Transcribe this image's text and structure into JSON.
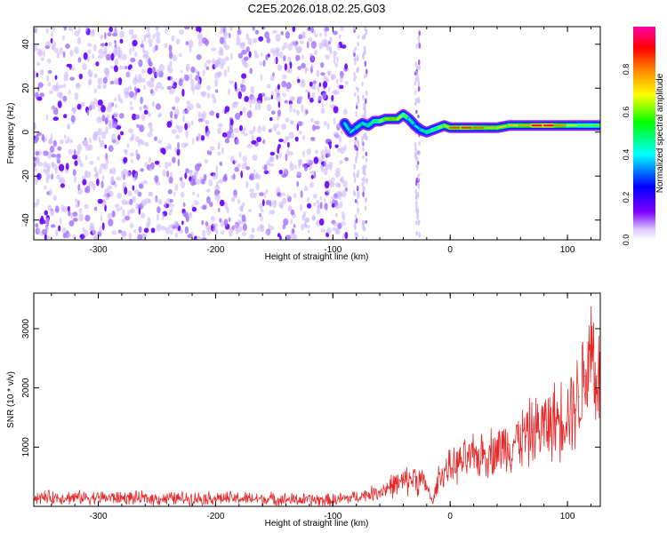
{
  "title": "C2E5.2026.018.02.25.G03",
  "chart_data": [
    {
      "type": "heatmap",
      "xlabel": "Height of straight line (km)",
      "ylabel": "Frequency (Hz)",
      "xlim": [
        -355,
        128
      ],
      "ylim": [
        -49,
        48
      ],
      "xticks": [
        -300,
        -200,
        -100,
        0,
        100
      ],
      "yticks": [
        -40,
        -20,
        0,
        20,
        40
      ],
      "grid": false,
      "colorbar": {
        "label": "Normalized spectral amplitude",
        "range": [
          0,
          1
        ],
        "ticks": [
          0.0,
          0.2,
          0.4,
          0.6,
          0.8
        ],
        "colors": [
          "#ffffff",
          "#d8c8ff",
          "#8000ff",
          "#0000ff",
          "#00ffff",
          "#00ff00",
          "#ffff00",
          "#ff8000",
          "#ff0000",
          "#ff00aa"
        ]
      },
      "noise_region_x": [
        -355,
        -88
      ],
      "sparse_columns_x": [
        -80,
        -73,
        -28
      ],
      "signal_trace": {
        "x": [
          -90,
          -85,
          -80,
          -75,
          -70,
          -65,
          -60,
          -55,
          -50,
          -45,
          -40,
          -35,
          -30,
          -25,
          -20,
          -15,
          -10,
          -5,
          0,
          10,
          20,
          30,
          40,
          50,
          60,
          70,
          80,
          90,
          100,
          110,
          120,
          128
        ],
        "freq": [
          4,
          0,
          2,
          4,
          3,
          5,
          5,
          6,
          6,
          6,
          8,
          6,
          3,
          1,
          0,
          1,
          2,
          3,
          2,
          2,
          2,
          2,
          2,
          3,
          3,
          3,
          3,
          3,
          3,
          3,
          3,
          3
        ],
        "amplitude": [
          0.5,
          0.4,
          0.45,
          0.5,
          0.45,
          0.55,
          0.55,
          0.7,
          0.8,
          0.75,
          0.65,
          0.55,
          0.4,
          0.45,
          0.5,
          0.55,
          0.6,
          0.65,
          0.8,
          0.9,
          0.85,
          0.8,
          0.7,
          0.75,
          0.7,
          0.85,
          0.95,
          0.9,
          0.7,
          0.6,
          0.6,
          0.6
        ]
      }
    },
    {
      "type": "line",
      "xlabel": "Height of straight line (km)",
      "ylabel": "SNR (10 * v/v)",
      "xlim": [
        -355,
        128
      ],
      "ylim": [
        0,
        3600
      ],
      "xticks": [
        -300,
        -200,
        -100,
        0,
        100
      ],
      "yticks": [
        1000,
        2000,
        3000
      ],
      "color": "#e8292a",
      "series": [
        {
          "x": [
            -355,
            -300,
            -250,
            -200,
            -150,
            -100,
            -80,
            -60,
            -50,
            -40,
            -30,
            -20,
            -15,
            -10,
            0,
            10,
            20,
            30,
            40,
            50,
            60,
            70,
            80,
            90,
            100,
            110,
            115,
            120,
            125,
            128
          ],
          "y": [
            150,
            150,
            130,
            140,
            120,
            100,
            160,
            250,
            350,
            400,
            500,
            350,
            50,
            500,
            650,
            750,
            820,
            900,
            950,
            1050,
            1150,
            1250,
            1350,
            1450,
            1600,
            1850,
            2200,
            2800,
            2200,
            2000
          ]
        }
      ]
    }
  ]
}
